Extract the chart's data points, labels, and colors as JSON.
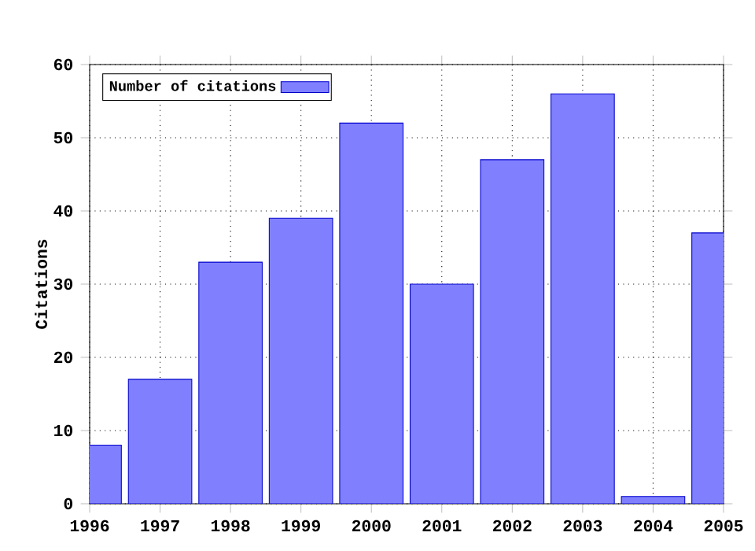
{
  "chart_data": {
    "type": "bar",
    "ylabel": "Citations",
    "x": [
      1996,
      1997,
      1998,
      1999,
      2000,
      2001,
      2002,
      2003,
      2004,
      2005
    ],
    "series": [
      {
        "name": "Number of citations",
        "color": "#8080ff",
        "values": [
          8,
          17,
          33,
          39,
          52,
          30,
          47,
          56,
          1,
          37
        ]
      }
    ],
    "xlim": [
      1996,
      2005
    ],
    "xticks": [
      1996,
      1997,
      1998,
      1999,
      2000,
      2001,
      2002,
      2003,
      2004,
      2005
    ],
    "ylim": [
      0,
      60
    ],
    "yticks": [
      0,
      10,
      20,
      30,
      40,
      50,
      60
    ],
    "grid": true,
    "legend": "top left"
  }
}
